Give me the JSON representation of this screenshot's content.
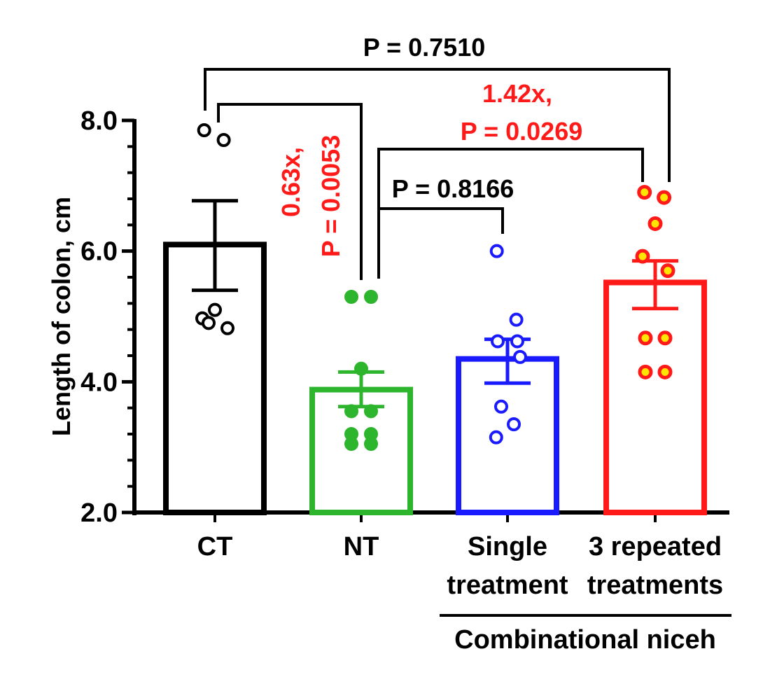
{
  "chart_data": {
    "type": "bar",
    "ylabel": "Length of colon, cm",
    "ylim": [
      2.0,
      8.0
    ],
    "yticks": [
      "2.0",
      "4.0",
      "6.0",
      "8.0"
    ],
    "categories": [
      "CT",
      "NT",
      "Single treatment",
      "3 repeated treatments"
    ],
    "category_lines": [
      [
        "CT"
      ],
      [
        "NT"
      ],
      [
        "Single",
        "treatment"
      ],
      [
        "3 repeated",
        "treatments"
      ]
    ],
    "group_label": "Combinational niceh",
    "bars": [
      {
        "label": "CT",
        "mean": 6.1,
        "sem_low": 5.4,
        "sem_high": 6.77,
        "color": "#000000",
        "marker": "open",
        "marker_color": "#000000",
        "points": [
          7.85,
          7.7,
          5.1,
          4.97,
          4.82,
          4.9
        ]
      },
      {
        "label": "NT",
        "mean": 3.88,
        "sem_low": 3.62,
        "sem_high": 4.15,
        "color": "#2db52d",
        "marker": "filled",
        "marker_color": "#2db52d",
        "points": [
          5.3,
          5.3,
          4.2,
          3.55,
          3.55,
          3.2,
          3.2,
          3.05,
          3.05
        ]
      },
      {
        "label": "Single treatment",
        "mean": 4.35,
        "sem_low": 3.98,
        "sem_high": 4.65,
        "color": "#1a1aff",
        "marker": "open",
        "marker_color": "#1a1aff",
        "points": [
          6.0,
          4.95,
          4.62,
          4.62,
          4.38,
          3.62,
          3.35,
          3.15
        ]
      },
      {
        "label": "3 repeated treatments",
        "mean": 5.52,
        "sem_low": 5.12,
        "sem_high": 5.85,
        "color": "#ff1a1a",
        "marker": "yellow",
        "marker_color": "#ff1a1a",
        "points": [
          6.9,
          6.82,
          6.42,
          5.92,
          5.7,
          4.67,
          4.67,
          4.15,
          4.15
        ]
      }
    ],
    "comparisons": [
      {
        "from": "CT",
        "to": "3 repeated treatments",
        "label": [
          "P = 0.7510"
        ],
        "color": "#000000"
      },
      {
        "from": "CT",
        "to": "NT",
        "label": [
          "0.63x,",
          "P = 0.0053"
        ],
        "color": "#ff1a1a"
      },
      {
        "from": "NT",
        "to": "3 repeated treatments",
        "label": [
          "1.42x,",
          "P = 0.0269"
        ],
        "color": "#ff1a1a"
      },
      {
        "from": "NT",
        "to": "Single treatment",
        "label": [
          "P = 0.8166"
        ],
        "color": "#000000"
      }
    ]
  }
}
